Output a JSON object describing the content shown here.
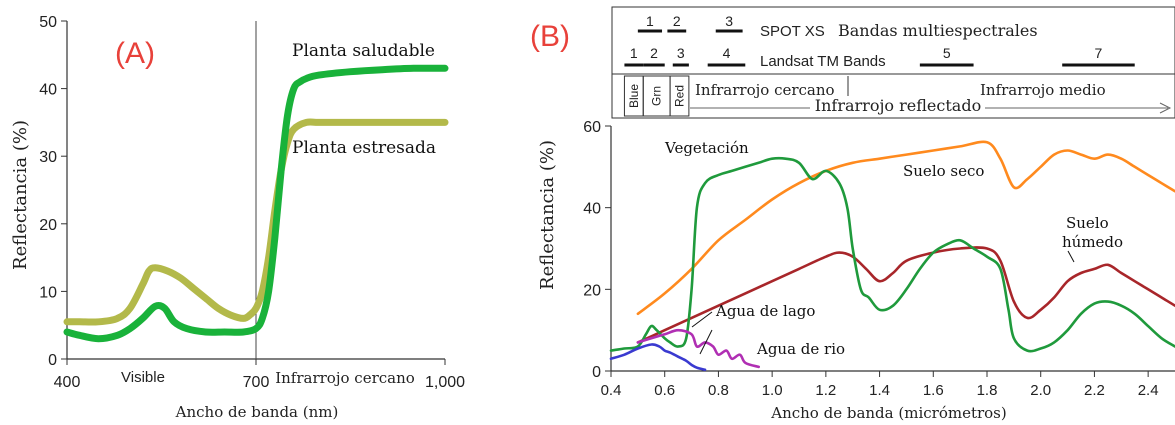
{
  "panel_labels": {
    "a": "(A)",
    "b": "(B)"
  },
  "colors": {
    "panel_label": "#e8413a",
    "healthy": "#19b23a",
    "stressed": "#b3b94a",
    "vegetation": "#1f9a3c",
    "dry_soil": "#ff8a1e",
    "wet_soil": "#a8262a",
    "lake_water": "#3a3ad0",
    "river_water": "#b02fb3"
  },
  "chart_data": [
    {
      "id": "A",
      "type": "line",
      "xlabel": "Ancho de banda (nm)",
      "ylabel": "Reflectancia  (%)",
      "xlim": [
        400,
        1000
      ],
      "ylim": [
        0,
        50
      ],
      "x_ticks": [
        {
          "value": 400,
          "label": "400"
        },
        {
          "value": 700,
          "label": "700"
        },
        {
          "value": 1000,
          "label": "1,000"
        }
      ],
      "y_ticks": [
        0,
        10,
        20,
        30,
        40,
        50
      ],
      "region_labels": [
        {
          "text": "Visible",
          "x": 560
        },
        {
          "text": "Infrarrojo cercano",
          "x": 860
        }
      ],
      "divider_x": 700,
      "series": [
        {
          "name": "Planta saludable",
          "color_key": "healthy",
          "x": [
            400,
            420,
            450,
            480,
            500,
            520,
            540,
            555,
            570,
            590,
            620,
            650,
            680,
            700,
            710,
            720,
            730,
            740,
            750,
            760,
            770,
            780,
            800,
            850,
            900,
            950,
            1000
          ],
          "y": [
            4,
            3.5,
            3,
            3.5,
            4.5,
            6,
            7.8,
            7.5,
            5.5,
            4.5,
            4,
            4,
            4,
            4.5,
            6,
            10,
            18,
            28,
            36,
            40,
            41,
            41.5,
            42,
            42.5,
            42.8,
            43,
            43
          ]
        },
        {
          "name": "Planta estresada",
          "color_key": "stressed",
          "x": [
            400,
            420,
            450,
            480,
            500,
            520,
            530,
            540,
            560,
            580,
            600,
            620,
            640,
            660,
            680,
            690,
            700,
            710,
            720,
            730,
            740,
            750,
            760,
            780,
            800,
            850,
            900,
            950,
            1000
          ],
          "y": [
            5.5,
            5.5,
            5.5,
            6,
            7.5,
            11,
            13,
            13.5,
            13,
            12,
            10.5,
            9,
            7.5,
            6.5,
            6,
            6.5,
            7.5,
            10,
            15,
            22,
            28,
            32,
            34,
            35,
            35,
            35,
            35,
            35,
            35
          ]
        }
      ]
    },
    {
      "id": "B",
      "type": "line",
      "xlabel": "Ancho de banda (micrómetros)",
      "ylabel": "Reflectancia  (%)",
      "xlim": [
        0.4,
        2.5
      ],
      "ylim": [
        0,
        60
      ],
      "x_ticks": [
        0.4,
        0.6,
        0.8,
        1.0,
        1.2,
        1.4,
        1.6,
        1.8,
        2.0,
        2.2,
        2.4
      ],
      "y_ticks": [
        0,
        20,
        40,
        60
      ],
      "header": {
        "spot_label": "SPOT XS",
        "multispectral_label": "Bandas multiespectrales",
        "landsat_label": "Landsat TM Bands",
        "spot_bands": [
          {
            "label": "1",
            "x0": 0.5,
            "x1": 0.59
          },
          {
            "label": "2",
            "x0": 0.61,
            "x1": 0.68
          },
          {
            "label": "3",
            "x0": 0.79,
            "x1": 0.89
          }
        ],
        "landsat_bands": [
          {
            "label": "1",
            "x0": 0.45,
            "x1": 0.52
          },
          {
            "label": "2",
            "x0": 0.52,
            "x1": 0.6
          },
          {
            "label": "3",
            "x0": 0.63,
            "x1": 0.69
          },
          {
            "label": "4",
            "x0": 0.76,
            "x1": 0.9
          },
          {
            "label": "5",
            "x0": 1.55,
            "x1": 1.75
          },
          {
            "label": "7",
            "x0": 2.08,
            "x1": 2.35
          }
        ],
        "region_boxes": [
          {
            "label": "Blue",
            "x0": 0.45,
            "x1": 0.52,
            "vertical": true
          },
          {
            "label": "Grn",
            "x0": 0.52,
            "x1": 0.62,
            "vertical": true
          },
          {
            "label": "Red",
            "x0": 0.62,
            "x1": 0.69,
            "vertical": true
          }
        ],
        "nir_label": "Infrarrojo cercano",
        "reflected_label": "Infrarrojo reflectado",
        "mir_label": "Infrarrojo medio"
      },
      "series": [
        {
          "name": "Vegetación",
          "color_key": "vegetation",
          "x": [
            0.4,
            0.45,
            0.5,
            0.53,
            0.55,
            0.57,
            0.6,
            0.62,
            0.65,
            0.68,
            0.7,
            0.72,
            0.75,
            0.8,
            0.85,
            0.9,
            0.95,
            1.0,
            1.05,
            1.1,
            1.15,
            1.2,
            1.25,
            1.28,
            1.3,
            1.33,
            1.36,
            1.4,
            1.45,
            1.5,
            1.55,
            1.6,
            1.65,
            1.7,
            1.75,
            1.8,
            1.85,
            1.88,
            1.9,
            1.95,
            2.0,
            2.05,
            2.1,
            2.15,
            2.2,
            2.25,
            2.3,
            2.35,
            2.4,
            2.45,
            2.5
          ],
          "y": [
            5,
            5.5,
            6,
            9,
            11,
            10,
            8,
            7,
            6,
            8,
            20,
            40,
            46,
            48,
            49,
            50,
            51,
            52,
            52,
            51,
            47,
            49,
            46,
            40,
            30,
            20,
            18,
            15,
            16,
            20,
            25,
            29,
            31,
            32,
            30,
            28,
            25,
            15,
            8,
            5,
            5.5,
            7,
            10,
            14,
            16.5,
            17,
            16,
            14,
            11,
            8,
            6
          ]
        },
        {
          "name": "Suelo seco",
          "color_key": "dry_soil",
          "x": [
            0.5,
            0.6,
            0.7,
            0.8,
            0.9,
            1.0,
            1.1,
            1.2,
            1.3,
            1.4,
            1.5,
            1.6,
            1.7,
            1.8,
            1.85,
            1.9,
            1.95,
            2.0,
            2.05,
            2.1,
            2.15,
            2.2,
            2.25,
            2.3,
            2.35,
            2.4,
            2.45,
            2.5
          ],
          "y": [
            14,
            19,
            25,
            32,
            37,
            42,
            46,
            49,
            51,
            52,
            53,
            54,
            55,
            56,
            52,
            45,
            47,
            50,
            53,
            54,
            53,
            52,
            53,
            52,
            50,
            48,
            46,
            44
          ]
        },
        {
          "name": "Suelo húmedo",
          "color_key": "wet_soil",
          "x": [
            0.5,
            0.6,
            0.7,
            0.8,
            0.9,
            1.0,
            1.1,
            1.2,
            1.25,
            1.3,
            1.35,
            1.4,
            1.45,
            1.5,
            1.6,
            1.7,
            1.8,
            1.85,
            1.9,
            1.95,
            2.0,
            2.05,
            2.1,
            2.15,
            2.2,
            2.25,
            2.3,
            2.35,
            2.4,
            2.45,
            2.5
          ],
          "y": [
            7,
            10,
            13,
            16,
            19,
            22,
            25,
            28,
            29,
            28,
            25,
            22,
            24,
            27,
            29,
            30,
            30,
            27,
            17,
            13,
            15,
            18,
            22,
            24,
            25,
            26,
            24,
            22,
            20,
            18,
            16
          ]
        },
        {
          "name": "Agua de lago",
          "color_key": "lake_water",
          "x": [
            0.4,
            0.45,
            0.5,
            0.55,
            0.58,
            0.6,
            0.62,
            0.65,
            0.68,
            0.7,
            0.72,
            0.75
          ],
          "y": [
            3,
            4,
            5.5,
            6.5,
            6,
            5,
            4.5,
            3.5,
            2.5,
            1.5,
            0.8,
            0.3
          ]
        },
        {
          "name": "Agua de rio",
          "color_key": "river_water",
          "x": [
            0.5,
            0.55,
            0.6,
            0.65,
            0.7,
            0.72,
            0.75,
            0.78,
            0.8,
            0.83,
            0.85,
            0.88,
            0.9,
            0.95
          ],
          "y": [
            7,
            8,
            9,
            10,
            9,
            6,
            7,
            6,
            4,
            5,
            3,
            4,
            2,
            1
          ]
        }
      ],
      "annotations": [
        {
          "text": "Vegetación"
        },
        {
          "text": "Suelo seco"
        },
        {
          "text": "Suelo",
          "text2": "húmedo"
        },
        {
          "text": "Agua de lago"
        },
        {
          "text": "Agua de rio"
        }
      ]
    }
  ]
}
